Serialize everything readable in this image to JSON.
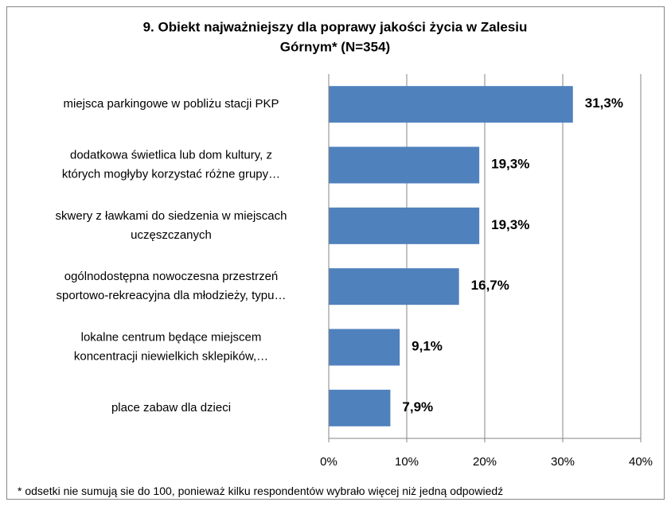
{
  "chart_data": {
    "type": "bar",
    "orientation": "horizontal",
    "title": "9. Obiekt najważniejszy dla poprawy jakości życia w Zalesiu\nGórnym* (N=354)",
    "categories": [
      "miejsca parkingowe w pobliżu stacji PKP",
      "dodatkowa świetlica lub dom kultury, z\nktórych mogłyby korzystać różne grupy…",
      "skwery z ławkami do siedzenia w miejscach\nuczęszczanych",
      "ogólnodostępna nowoczesna przestrzeń\nsportowo-rekreacyjna dla młodzieży, typu…",
      "lokalne centrum będące miejscem\nkoncentracji niewielkich sklepików,…",
      "place zabaw dla dzieci"
    ],
    "values": [
      31.3,
      19.3,
      19.3,
      16.7,
      9.1,
      7.9
    ],
    "value_labels": [
      "31,3%",
      "19,3%",
      "19,3%",
      "16,7%",
      "9,1%",
      "7,9%"
    ],
    "color": "#4f81bd",
    "xlim": [
      0,
      40
    ],
    "xticks": [
      {
        "value": 0,
        "label": "0%"
      },
      {
        "value": 10,
        "label": "10%"
      },
      {
        "value": 20,
        "label": "20%"
      },
      {
        "value": 30,
        "label": "30%"
      },
      {
        "value": 40,
        "label": "40%"
      }
    ],
    "grid": true,
    "footnote": "* odsetki nie sumują sie do 100, ponieważ kilku respondentów wybrało więcej niż jedną odpowiedź"
  }
}
